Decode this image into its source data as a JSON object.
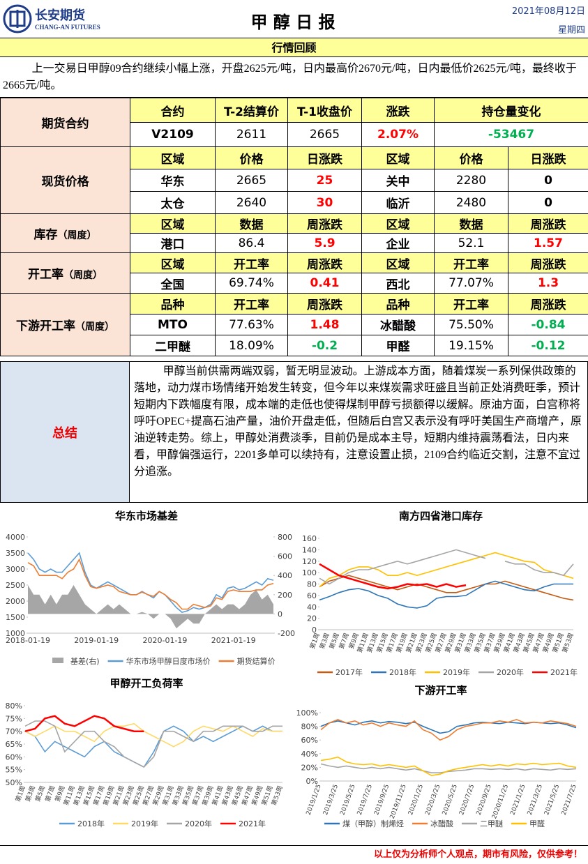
{
  "header": {
    "logo_cn": "长安期货",
    "logo_en": "CHANG-AN FUTURES",
    "title": "甲 醇 日 报",
    "date": "2021年08月12日",
    "weekday": "星期四"
  },
  "review": {
    "title": "行情回顾",
    "text": "上一交易日甲醇09合约继续小幅上涨，开盘2625元/吨，日内最高价2670元/吨，日内最低价2625元/吨，最终收于2665元/吨。"
  },
  "up_color": "#ff0000",
  "down_color": "#00b050",
  "sections": [
    {
      "label": "期货合约",
      "rows": [
        [
          "合约",
          "T-2结算价",
          "T-1收盘价",
          "涨跌",
          "持仓量变化"
        ],
        [
          "V2109",
          "2611",
          "2665",
          "2.07%",
          "-53467"
        ]
      ]
    },
    {
      "label": "现货价格",
      "rows": [
        [
          "区域",
          "价格",
          "日涨跌",
          "区域",
          "价格",
          "日涨跌"
        ],
        [
          "华东",
          "2665",
          "25",
          "关中",
          "2280",
          "0"
        ],
        [
          "太仓",
          "2640",
          "30",
          "临沂",
          "2480",
          "0"
        ]
      ]
    },
    {
      "label": "库存",
      "sublabel": "（周度）",
      "rows": [
        [
          "区域",
          "数据",
          "周涨跌",
          "区域",
          "数据",
          "周涨跌"
        ],
        [
          "港口",
          "86.4",
          "5.9",
          "企业",
          "52.1",
          "1.57"
        ]
      ]
    },
    {
      "label": "开工率",
      "sublabel": "（周度）",
      "rows": [
        [
          "区域",
          "开工率",
          "周涨跌",
          "区域",
          "开工率",
          "周涨跌"
        ],
        [
          "全国",
          "69.74%",
          "0.41",
          "西北",
          "77.07%",
          "1.3"
        ]
      ]
    },
    {
      "label": "下游开工率",
      "sublabel": "（周度）",
      "rows": [
        [
          "品种",
          "开工率",
          "周涨跌",
          "品种",
          "开工率",
          "周涨跌"
        ],
        [
          "MTO",
          "77.63%",
          "1.48",
          "冰醋酸",
          "75.50%",
          "-0.84"
        ],
        [
          "二甲醚",
          "18.09%",
          "-0.2",
          "甲醛",
          "19.15%",
          "-0.12"
        ]
      ]
    }
  ],
  "summary": {
    "label": "总结",
    "text": "甲醇当前供需两端双弱，暂无明显波动。上游成本方面，随着煤炭一系列保供政策的落地，动力煤市场情绪开始发生转变，但今年以来煤炭需求旺盛且当前正处消费旺季，预计短期内下跌幅度有限，成本端的走低也使得煤制甲醇亏损额得以缓解。原油方面，白宫称将呼吁OPEC+提高石油产量，油价开盘走低，但随后白宫又表示没有呼吁美国生产商增产，原油逆转走势。综上，甲醇处消费淡季，目前仍是成本主导，短期内维持震荡看法，日内来看，甲醇偏强运行，2201多单可以续持有，注意设置止损，2109合约临近交割，注意不宜过分追涨。"
  },
  "charts": [
    {
      "type": "line",
      "title": "华东市场基差",
      "categories": [
        "2018-01-19",
        null,
        null,
        null,
        null,
        null,
        null,
        null,
        null,
        null,
        null,
        null,
        "2019-01-19",
        null,
        null,
        null,
        null,
        null,
        null,
        null,
        null,
        null,
        null,
        null,
        "2020-01-19",
        null,
        null,
        null,
        null,
        null,
        null,
        null,
        null,
        null,
        null,
        null,
        "2021-01-19",
        null,
        null,
        null,
        null,
        null,
        null,
        null
      ],
      "ylim": [
        1000,
        4000
      ],
      "yticks": [
        1000,
        1500,
        2000,
        2500,
        3000,
        3500,
        4000
      ],
      "y2lim": [
        -200,
        800
      ],
      "y2ticks": [
        -200,
        0,
        200,
        400,
        600,
        800
      ],
      "series": [
        {
          "name": "基差(右)",
          "type": "area",
          "axis": "y2",
          "color": "#a6a6a6",
          "values": [
            300,
            200,
            200,
            100,
            200,
            100,
            200,
            200,
            300,
            200,
            100,
            50,
            0,
            50,
            100,
            50,
            100,
            50,
            0,
            0,
            20,
            0,
            -50,
            0,
            0,
            -50,
            -150,
            -100,
            -50,
            -100,
            -100,
            0,
            50,
            100,
            50,
            100,
            100,
            50,
            100,
            200,
            250,
            150,
            200,
            100
          ]
        },
        {
          "name": "华东市场甲醇日度市场价",
          "color": "#5b9bd5",
          "values": [
            3500,
            3300,
            3000,
            2900,
            3000,
            2900,
            2900,
            3100,
            3300,
            3500,
            2900,
            2500,
            2400,
            2500,
            2600,
            2500,
            2400,
            2300,
            2200,
            2200,
            2300,
            2200,
            2100,
            2300,
            2200,
            2000,
            1800,
            1650,
            1700,
            1800,
            1750,
            1800,
            1900,
            2200,
            2100,
            2400,
            2450,
            2350,
            2400,
            2500,
            2600,
            2500,
            2700,
            2650
          ]
        },
        {
          "name": "期货结算价",
          "color": "#ed7d31",
          "values": [
            3200,
            3100,
            2800,
            2800,
            2800,
            2800,
            2700,
            2900,
            3000,
            3300,
            2800,
            2450,
            2400,
            2450,
            2500,
            2450,
            2300,
            2250,
            2200,
            2200,
            2280,
            2200,
            2150,
            2300,
            2200,
            2050,
            1950,
            1750,
            1750,
            1900,
            1850,
            1800,
            1850,
            2100,
            2050,
            2300,
            2350,
            2300,
            2300,
            2300,
            2350,
            2350,
            2500,
            2550
          ]
        }
      ]
    },
    {
      "type": "line",
      "title": "南方四省港口库存",
      "categories": [
        "第1周",
        "第3周",
        "第5周",
        "第7周",
        "第9周",
        "第11周",
        "第13周",
        "第15周",
        "第17周",
        "第19周",
        "第21周",
        "第23周",
        "第25周",
        "第27周",
        "第29周",
        "第31周",
        "第33周",
        "第35周",
        "第37周",
        "第39周",
        "第41周",
        "第43周",
        "第45周",
        "第47周",
        "第49周",
        "第51周",
        "第53周"
      ],
      "ylim": [
        0,
        160
      ],
      "yticks": [
        0,
        20,
        40,
        60,
        80,
        100,
        120,
        140,
        160
      ],
      "series": [
        {
          "name": "2017年",
          "color": "#c55a11",
          "values": [
            75,
            85,
            90,
            95,
            90,
            85,
            80,
            75,
            70,
            75,
            80,
            75,
            70,
            65,
            65,
            70,
            75,
            80,
            80,
            85,
            80,
            75,
            70,
            65,
            60,
            55,
            52
          ]
        },
        {
          "name": "2018年",
          "color": "#2e75b6",
          "values": [
            52,
            58,
            65,
            70,
            72,
            68,
            60,
            55,
            45,
            40,
            38,
            42,
            55,
            58,
            58,
            60,
            70,
            80,
            85,
            80,
            75,
            70,
            68,
            75,
            80,
            80,
            80
          ]
        },
        {
          "name": "2019年",
          "color": "#ffc000",
          "values": [
            75,
            90,
            95,
            105,
            110,
            110,
            105,
            95,
            95,
            100,
            95,
            100,
            105,
            110,
            115,
            120,
            125,
            130,
            135,
            130,
            125,
            120,
            118,
            105,
            100,
            95,
            90
          ]
        },
        {
          "name": "2020年",
          "color": "#a5a5a5",
          "values": [
            90,
            80,
            90,
            100,
            105,
            105,
            110,
            115,
            120,
            115,
            120,
            125,
            130,
            135,
            140,
            135,
            130,
            125,
            null,
            120,
            115,
            115,
            105,
            100,
            100,
            95,
            115
          ]
        },
        {
          "name": "2021年",
          "color": "#ff0000",
          "values": [
            115,
            105,
            95,
            90,
            85,
            80,
            75,
            72,
            75,
            80,
            78,
            80,
            75,
            80,
            75,
            78,
            null,
            null,
            null,
            null,
            null,
            null,
            null,
            null,
            null,
            null,
            null
          ]
        }
      ]
    },
    {
      "type": "line",
      "title": "甲醇开工负荷率",
      "categories": [
        "第1周",
        "第3周",
        "第5周",
        "第7周",
        "第9周",
        "第11周",
        "第13周",
        "第15周",
        "第17周",
        "第19周",
        "第21周",
        "第23周",
        "第25周",
        "第27周",
        "第29周",
        "第31周",
        "第33周",
        "第35周",
        "第37周",
        "第39周",
        "第41周",
        "第43周",
        "第45周",
        "第47周",
        "第49周",
        "第51周",
        "第53周"
      ],
      "ylim": [
        50,
        80
      ],
      "yticks": [
        {
          "value": 50,
          "label": "50%"
        },
        {
          "value": 55,
          "label": "55%"
        },
        {
          "value": 60,
          "label": "60%"
        },
        {
          "value": 65,
          "label": "65%"
        },
        {
          "value": 70,
          "label": "70%"
        },
        {
          "value": 75,
          "label": "75%"
        },
        {
          "value": 80,
          "label": "80%"
        }
      ],
      "series": [
        {
          "name": "2018年",
          "color": "#5b9bd5",
          "values": [
            70,
            68,
            62,
            66,
            64,
            62,
            60,
            64,
            66,
            62,
            60,
            58,
            56,
            62,
            70,
            72,
            70,
            66,
            68,
            66,
            68,
            70,
            72,
            70,
            72,
            70,
            70
          ]
        },
        {
          "name": "2019年",
          "color": "#ffd966",
          "values": [
            70,
            68,
            70,
            72,
            70,
            70,
            68,
            66,
            70,
            72,
            72,
            73,
            70,
            68,
            66,
            64,
            66,
            70,
            72,
            71,
            70,
            72,
            70,
            68,
            71,
            70,
            70
          ]
        },
        {
          "name": "2020年",
          "color": "#a5a5a5",
          "values": [
            72,
            74,
            74,
            72,
            62,
            66,
            70,
            70,
            66,
            64,
            60,
            58,
            56,
            60,
            70,
            70,
            68,
            66,
            70,
            70,
            72,
            72,
            72,
            70,
            70,
            72,
            72
          ]
        },
        {
          "name": "2021年",
          "color": "#ff0000",
          "values": [
            70,
            71,
            75,
            76,
            73,
            72,
            74,
            76,
            75,
            72,
            71,
            70,
            70,
            null,
            null,
            null,
            null,
            null,
            null,
            null,
            null,
            null,
            null,
            null,
            null,
            null,
            null
          ]
        }
      ]
    },
    {
      "type": "line",
      "title": "下游开工率",
      "categories": [
        "2019/1/25",
        null,
        "2019/3/25",
        null,
        "2019/5/25",
        null,
        "2019/7/25",
        null,
        "2019/9/25",
        null,
        "2019/11/25",
        null,
        "2020/1/25",
        null,
        "2020/3/25",
        null,
        "2020/5/25",
        null,
        "2020/7/25",
        null,
        "2020/9/25",
        null,
        "2020/11/25",
        null,
        "2021/1/25",
        null,
        "2021/3/25",
        null,
        "2021/5/25",
        null,
        "2021/7/25"
      ],
      "ylim": [
        0,
        100
      ],
      "yticks": [
        {
          "value": 0,
          "label": "0%"
        },
        {
          "value": 20,
          "label": "20%"
        },
        {
          "value": 40,
          "label": "40%"
        },
        {
          "value": 60,
          "label": "60%"
        },
        {
          "value": 80,
          "label": "80%"
        },
        {
          "value": 100,
          "label": "100%"
        }
      ],
      "series": [
        {
          "name": "煤（甲醇）制烯烃",
          "color": "#2e75b6",
          "values": [
            80,
            85,
            88,
            85,
            82,
            86,
            88,
            85,
            87,
            86,
            84,
            86,
            80,
            75,
            70,
            72,
            80,
            82,
            85,
            86,
            85,
            84,
            86,
            85,
            84,
            86,
            85,
            84,
            85,
            82,
            78
          ]
        },
        {
          "name": "冰醋酸",
          "color": "#ed7d31",
          "values": [
            75,
            85,
            90,
            85,
            88,
            82,
            85,
            80,
            85,
            82,
            80,
            88,
            75,
            70,
            60,
            65,
            75,
            80,
            82,
            85,
            85,
            88,
            86,
            90,
            85,
            86,
            85,
            88,
            86,
            84,
            80
          ]
        },
        {
          "name": "二甲醚",
          "color": "#a5a5a5",
          "values": [
            25,
            22,
            20,
            22,
            20,
            18,
            20,
            18,
            20,
            18,
            16,
            18,
            15,
            12,
            12,
            14,
            15,
            16,
            18,
            18,
            17,
            18,
            17,
            18,
            16,
            18,
            17,
            16,
            18,
            17,
            18
          ]
        },
        {
          "name": "甲醛",
          "color": "#ffc000",
          "values": [
            30,
            32,
            35,
            28,
            25,
            24,
            25,
            22,
            24,
            22,
            20,
            22,
            15,
            8,
            10,
            15,
            18,
            20,
            22,
            24,
            22,
            24,
            22,
            25,
            24,
            26,
            24,
            25,
            26,
            22,
            20
          ]
        }
      ]
    }
  ],
  "footer": "以上仅为分析师个人观点，期市有风险，仅供参考！"
}
